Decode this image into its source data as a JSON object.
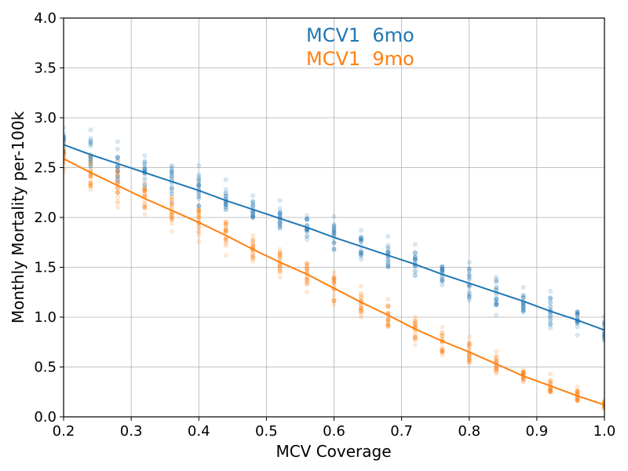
{
  "chart_data": {
    "type": "scatter",
    "xlabel": "MCV Coverage",
    "ylabel": "Monthly Mortality per-100k",
    "xlim": [
      0.2,
      1.0
    ],
    "ylim": [
      0.0,
      4.0
    ],
    "xticks": [
      "0.2",
      "0.3",
      "0.4",
      "0.5",
      "0.6",
      "0.7",
      "0.8",
      "0.9",
      "1.0"
    ],
    "yticks": [
      "0.0",
      "0.5",
      "1.0",
      "1.5",
      "2.0",
      "2.5",
      "3.0",
      "3.5",
      "4.0"
    ],
    "grid": true,
    "legend_placement": "top-center",
    "x": [
      0.2,
      0.24,
      0.28,
      0.32,
      0.36,
      0.4,
      0.44,
      0.48,
      0.52,
      0.56,
      0.6,
      0.64,
      0.68,
      0.72,
      0.76,
      0.8,
      0.84,
      0.88,
      0.92,
      0.96,
      1.0
    ],
    "series": [
      {
        "name": "MCV1  6mo",
        "color": "#1f77b4",
        "fit": [
          2.73,
          2.63,
          2.54,
          2.45,
          2.36,
          2.27,
          2.17,
          2.08,
          1.99,
          1.9,
          1.8,
          1.71,
          1.62,
          1.53,
          1.43,
          1.34,
          1.25,
          1.16,
          1.06,
          0.97,
          0.87
        ],
        "scatter_min": [
          2.62,
          2.45,
          2.35,
          2.3,
          2.15,
          2.12,
          2.08,
          2.0,
          1.9,
          1.78,
          1.68,
          1.58,
          1.5,
          1.42,
          1.32,
          1.17,
          1.02,
          1.05,
          0.89,
          0.82,
          0.76
        ],
        "scatter_max": [
          2.9,
          2.88,
          2.76,
          2.62,
          2.52,
          2.52,
          2.38,
          2.22,
          2.17,
          2.02,
          2.01,
          1.87,
          1.81,
          1.73,
          1.51,
          1.55,
          1.4,
          1.3,
          1.26,
          1.05,
          1.01
        ]
      },
      {
        "name": "MCV1  9mo",
        "color": "#ff7f0e",
        "fit": [
          2.59,
          2.45,
          2.32,
          2.19,
          2.07,
          1.95,
          1.82,
          1.68,
          1.55,
          1.43,
          1.29,
          1.15,
          1.02,
          0.88,
          0.76,
          0.65,
          0.53,
          0.41,
          0.31,
          0.21,
          0.12
        ],
        "scatter_min": [
          2.45,
          2.28,
          2.1,
          2.03,
          1.86,
          1.76,
          1.62,
          1.56,
          1.4,
          1.25,
          1.13,
          1.0,
          0.9,
          0.72,
          0.62,
          0.54,
          0.44,
          0.35,
          0.26,
          0.17,
          0.08
        ],
        "scatter_max": [
          2.74,
          2.62,
          2.56,
          2.34,
          2.2,
          2.08,
          1.96,
          1.82,
          1.68,
          1.54,
          1.45,
          1.31,
          1.18,
          1.0,
          0.9,
          0.8,
          0.66,
          0.47,
          0.43,
          0.3,
          0.17
        ]
      }
    ]
  }
}
